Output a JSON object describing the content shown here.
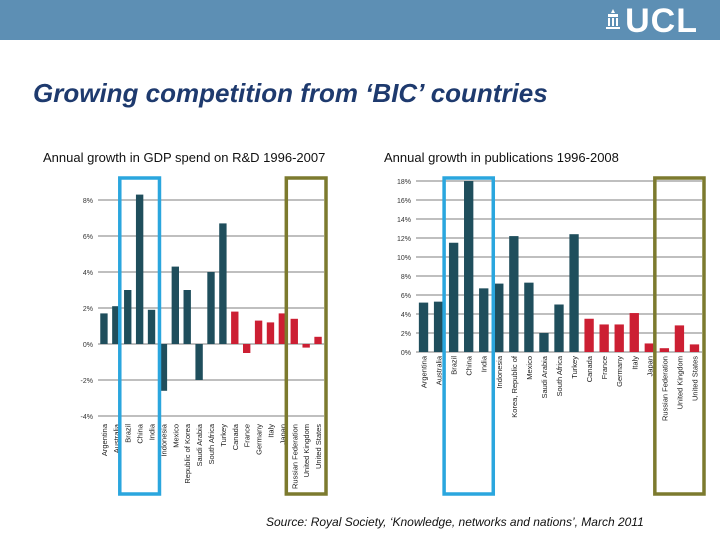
{
  "logo_text": "UCL",
  "title": "Growing competition from ‘BIC’ countries",
  "source": "Source: Royal Society, ‘Knowledge, networks and nations’, March 2011",
  "colors": {
    "bar_main": "#1f4e5c",
    "bar_highlight": "#cc1f33",
    "box_bic": "#2aa6de",
    "box_other": "#7c7a2e",
    "header": "#5d8fb4"
  },
  "chart_data": [
    {
      "type": "bar",
      "title": "Annual growth in GDP spend on R&D 1996-2007",
      "xlabel": "",
      "ylabel": "",
      "ylim": [
        -4,
        9
      ],
      "yticks": [
        -4,
        -2,
        0,
        2,
        4,
        6,
        8
      ],
      "ytick_labels": [
        "-4%",
        "-2%",
        "0%",
        "2%",
        "4%",
        "6%",
        "8%"
      ],
      "grid": true,
      "categories": [
        "Argentina",
        "Australia",
        "Brazil",
        "China",
        "India",
        "Indonesia",
        "Mexico",
        "Republic of Korea",
        "Saudi Arabia",
        "South Africa",
        "Turkey",
        "Canada",
        "France",
        "Germany",
        "Italy",
        "Japan",
        "Russian Federation",
        "United Kingdom",
        "United States"
      ],
      "values": [
        1.7,
        2.1,
        3.0,
        8.3,
        1.9,
        -2.6,
        4.3,
        3.0,
        -2.0,
        4.0,
        6.7,
        1.8,
        -0.5,
        1.3,
        1.2,
        1.7,
        1.4,
        -0.2,
        0.4
      ],
      "highlight_from": 11,
      "boxes": [
        {
          "label": "BIC",
          "categories": [
            "Brazil",
            "China",
            "India"
          ]
        },
        {
          "label": "other",
          "categories": [
            "Russian Federation",
            "United Kingdom",
            "United States"
          ]
        }
      ]
    },
    {
      "type": "bar",
      "title": "Annual growth in publications 1996-2008",
      "xlabel": "",
      "ylabel": "",
      "ylim": [
        0,
        18
      ],
      "yticks": [
        0,
        2,
        4,
        6,
        8,
        10,
        12,
        14,
        16,
        18
      ],
      "ytick_labels": [
        "0%",
        "2%",
        "4%",
        "6%",
        "8%",
        "10%",
        "12%",
        "14%",
        "16%",
        "18%"
      ],
      "grid": true,
      "categories": [
        "Argentina",
        "Australia",
        "Brazil",
        "China",
        "India",
        "Indonesia",
        "Korea, Republic of",
        "Mexico",
        "Saudi Arabia",
        "South Africa",
        "Turkey",
        "Canada",
        "France",
        "Germany",
        "Italy",
        "Japan",
        "Russian Federation",
        "United Kingdom",
        "United States"
      ],
      "values": [
        5.2,
        5.3,
        11.5,
        18.0,
        6.7,
        7.2,
        12.2,
        7.3,
        2.0,
        5.0,
        12.4,
        3.5,
        2.9,
        2.9,
        4.1,
        0.9,
        0.4,
        2.8,
        0.8
      ],
      "highlight_from": 11,
      "boxes": [
        {
          "label": "BIC",
          "categories": [
            "Brazil",
            "China",
            "India"
          ]
        },
        {
          "label": "other",
          "categories": [
            "Russian Federation",
            "United Kingdom",
            "United States"
          ]
        }
      ]
    }
  ]
}
